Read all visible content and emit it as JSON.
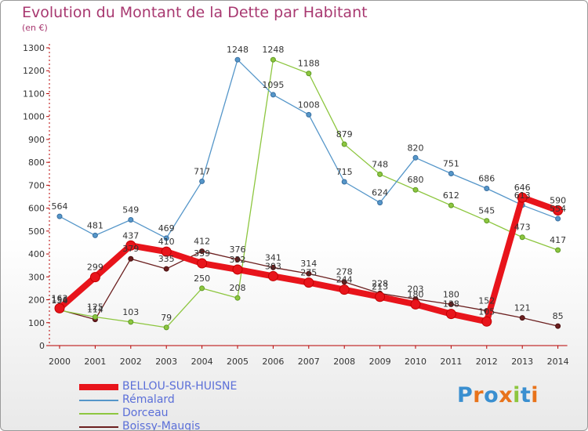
{
  "chart_data": {
    "type": "line",
    "title": "Evolution du Montant de la Dette par Habitant",
    "subtitle": "(en €)",
    "xlabel": "",
    "ylabel": "",
    "x": [
      "2000",
      "2001",
      "2002",
      "2003",
      "2004",
      "2005",
      "2006",
      "2007",
      "2008",
      "2009",
      "2010",
      "2011",
      "2012",
      "2013",
      "2014"
    ],
    "ylim": [
      0,
      1300
    ],
    "yticks": [
      "0",
      "100",
      "200",
      "300",
      "400",
      "500",
      "600",
      "700",
      "800",
      "900",
      "1000",
      "1100",
      "1200",
      "1300"
    ],
    "grid": false,
    "legend_position": "bottom-left",
    "series": [
      {
        "name": "BELLOU-SUR-HUISNE",
        "color": "#e8141b",
        "values": [
          163,
          299,
          437,
          410,
          359,
          332,
          303,
          275,
          244,
          213,
          180,
          138,
          105,
          646,
          590
        ]
      },
      {
        "name": "Rémalard",
        "color": "#5596c9",
        "values": [
          564,
          481,
          549,
          469,
          717,
          1248,
          1095,
          1008,
          715,
          624,
          820,
          751,
          686,
          613,
          554
        ]
      },
      {
        "name": "Dorceau",
        "color": "#8dc63f",
        "values": [
          154,
          125,
          103,
          79,
          250,
          208,
          1248,
          1188,
          879,
          748,
          680,
          612,
          545,
          473,
          417
        ]
      },
      {
        "name": "Boissy-Maugis",
        "color": "#6b1f1f",
        "values": [
          156,
          114,
          379,
          335,
          412,
          376,
          341,
          314,
          278,
          228,
          203,
          180,
          152,
          121,
          85
        ]
      }
    ]
  },
  "logo": {
    "letters": [
      "P",
      "r",
      "o",
      "x",
      "i",
      "t",
      "i"
    ]
  }
}
